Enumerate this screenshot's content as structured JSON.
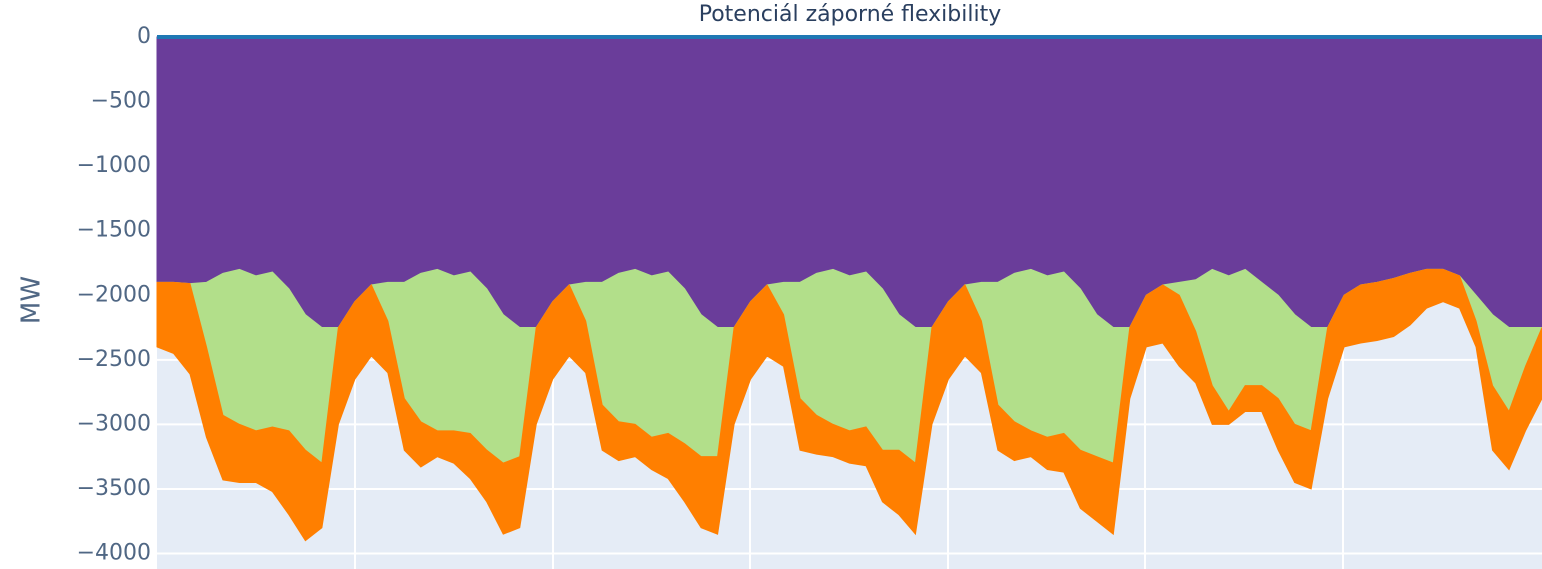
{
  "chart_data": {
    "type": "area",
    "stacked": true,
    "title": "Potenciál záporné flexibility",
    "y_label": "MW",
    "ylim": [
      -4120,
      0
    ],
    "yticks": [
      0,
      {
        "value": -500,
        "label": "−500"
      },
      {
        "value": -1000,
        "label": "−1000"
      },
      {
        "value": -1500,
        "label": "−1500"
      },
      {
        "value": -2000,
        "label": "−2000"
      },
      {
        "value": -2500,
        "label": "−2500"
      },
      {
        "value": -3000,
        "label": "−3000"
      },
      {
        "value": -3500,
        "label": "−3500"
      },
      {
        "value": -4000,
        "label": "−4000"
      }
    ],
    "grid": true,
    "series": [
      {
        "color": "#1f78b4",
        "values": [
          0,
          0,
          0,
          0,
          0,
          0,
          0,
          0,
          0,
          0,
          0,
          0,
          0,
          0,
          0,
          0,
          0,
          0,
          0,
          0,
          0,
          0,
          0,
          0,
          0,
          0,
          0,
          0,
          0,
          0,
          0,
          0,
          0,
          0,
          0,
          0,
          0,
          0,
          0,
          0,
          0,
          0,
          0,
          0,
          0,
          0,
          0,
          0,
          0,
          0,
          0,
          0,
          0,
          0,
          0,
          0,
          0,
          0,
          0,
          0,
          0,
          0,
          0,
          0,
          0,
          0,
          0,
          0,
          0,
          0,
          0,
          0,
          0,
          0,
          0,
          0,
          0,
          0,
          0,
          0,
          0,
          0,
          0,
          0,
          0
        ]
      },
      {
        "color": "#6a3d9a",
        "values": [
          -1900,
          -1900,
          -1910,
          -1900,
          -1830,
          -1800,
          -1850,
          -1820,
          -1950,
          -2150,
          -2250,
          -2250,
          -2050,
          -1920,
          -1900,
          -1900,
          -1830,
          -1800,
          -1850,
          -1820,
          -1950,
          -2150,
          -2250,
          -2250,
          -2050,
          -1920,
          -1900,
          -1900,
          -1830,
          -1800,
          -1850,
          -1820,
          -1950,
          -2150,
          -2250,
          -2250,
          -2050,
          -1920,
          -1900,
          -1900,
          -1830,
          -1800,
          -1850,
          -1820,
          -1950,
          -2150,
          -2250,
          -2250,
          -2050,
          -1920,
          -1900,
          -1900,
          -1830,
          -1800,
          -1850,
          -1820,
          -1950,
          -2150,
          -2250,
          -2250,
          -2000,
          -1920,
          -1900,
          -1880,
          -1800,
          -1850,
          -1800,
          -1900,
          -2000,
          -2150,
          -2250,
          -2250,
          -2000,
          -1920,
          -1900,
          -1870,
          -1830,
          -1800,
          -1800,
          -1850,
          -2000,
          -2150,
          -2250,
          -2250,
          -2250
        ]
      },
      {
        "color": "#b2df8a",
        "values": [
          0,
          0,
          0,
          -500,
          -1100,
          -1200,
          -1200,
          -1200,
          -1100,
          -1050,
          -1050,
          0,
          0,
          0,
          -300,
          -900,
          -1150,
          -1250,
          -1200,
          -1250,
          -1250,
          -1150,
          -1000,
          0,
          0,
          0,
          -300,
          -950,
          -1150,
          -1200,
          -1250,
          -1250,
          -1200,
          -1100,
          -1000,
          0,
          0,
          0,
          -250,
          -900,
          -1100,
          -1200,
          -1200,
          -1200,
          -1250,
          -1050,
          -1050,
          0,
          0,
          0,
          -300,
          -950,
          -1150,
          -1250,
          -1250,
          -1250,
          -1250,
          -1100,
          -1050,
          0,
          0,
          0,
          -100,
          -400,
          -900,
          -1050,
          -900,
          -800,
          -800,
          -850,
          -800,
          0,
          0,
          0,
          0,
          0,
          0,
          0,
          0,
          0,
          -200,
          -550,
          -650,
          -300,
          0
        ]
      },
      {
        "color": "#ff7f00",
        "values": [
          -500,
          -550,
          -700,
          -700,
          -500,
          -450,
          -400,
          -500,
          -650,
          -700,
          -500,
          -750,
          -600,
          -550,
          -400,
          -400,
          -350,
          -200,
          -250,
          -350,
          -400,
          -550,
          -550,
          -750,
          -600,
          -550,
          -400,
          -350,
          -300,
          -250,
          -250,
          -350,
          -450,
          -550,
          -600,
          -750,
          -600,
          -550,
          -400,
          -400,
          -300,
          -250,
          -250,
          -300,
          -400,
          -500,
          -550,
          -750,
          -600,
          -550,
          -400,
          -350,
          -300,
          -200,
          -250,
          -300,
          -450,
          -500,
          -550,
          -550,
          -400,
          -450,
          -550,
          -400,
          -300,
          -100,
          -200,
          -200,
          -400,
          -450,
          -450,
          -550,
          -400,
          -450,
          -450,
          -450,
          -400,
          -300,
          -250,
          -250,
          -200,
          -500,
          -450,
          -500,
          -550
        ]
      }
    ]
  }
}
